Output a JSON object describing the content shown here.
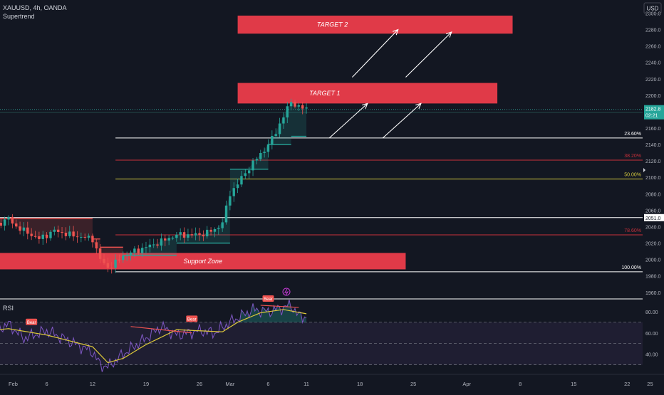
{
  "header": {
    "symbol_line": "XAUUSD, 4h, OANDA",
    "indicator": "Supertrend",
    "currency_button": "USD",
    "price_label": "2182.8",
    "countdown_label": "02:21",
    "rsi_label": "RSI"
  },
  "colors": {
    "background": "#131722",
    "up_candle": "#26a69a",
    "down_candle": "#ef5350",
    "supertrend_red": "#ef5350",
    "supertrend_green": "#26a69a",
    "zone_red": "#e03a48",
    "fib_white": "#ffffff",
    "fib_red": "#c8303a",
    "fib_yellow": "#d9cf40",
    "rsi_line": "#7e57c2",
    "rsi_ma": "#ddc93a",
    "rsi_fill": "#2a2540"
  },
  "chart_data": [
    {
      "type": "candlestick",
      "x_unit": "date",
      "y_unit": "USD",
      "ylim": [
        1952,
        2316
      ],
      "y_ticks": [
        1960,
        1980,
        2000,
        2020,
        2040,
        2060,
        2080,
        2100,
        2120,
        2140,
        2160,
        2180,
        2200,
        2220,
        2240,
        2260,
        2280,
        2300
      ],
      "y_tick_labels": [
        "1960.0",
        "1980.0",
        "2000.0",
        "2020.0",
        "2040.0",
        "2060.0",
        "2080.0",
        "2100.0",
        "2120.0",
        "2140.0",
        "2160.0",
        "2180.0",
        "2200.0",
        "2220.0",
        "2240.0",
        "2260.0",
        "2280.0",
        "2300.0"
      ],
      "x_ticks": [
        {
          "date": "2024-02-01",
          "label": "Feb"
        },
        {
          "date": "2024-02-06",
          "label": "6"
        },
        {
          "date": "2024-02-12",
          "label": "12"
        },
        {
          "date": "2024-02-19",
          "label": "19"
        },
        {
          "date": "2024-02-26",
          "label": "26"
        },
        {
          "date": "2024-03-01",
          "label": "Mar"
        },
        {
          "date": "2024-03-06",
          "label": "6"
        },
        {
          "date": "2024-03-11",
          "label": "11"
        },
        {
          "date": "2024-03-18",
          "label": "18"
        },
        {
          "date": "2024-03-25",
          "label": "25"
        },
        {
          "date": "2024-04-01",
          "label": "Apr"
        },
        {
          "date": "2024-04-08",
          "label": "8"
        },
        {
          "date": "2024-04-15",
          "label": "15"
        },
        {
          "date": "2024-04-22",
          "label": "22"
        },
        {
          "date": "2024-04-25",
          "label": "25"
        }
      ],
      "price_path": [
        {
          "date": "2024-01-29",
          "price": 2035
        },
        {
          "date": "2024-02-01",
          "price": 2050
        },
        {
          "date": "2024-02-02",
          "price": 2040
        },
        {
          "date": "2024-02-05",
          "price": 2025
        },
        {
          "date": "2024-02-07",
          "price": 2035
        },
        {
          "date": "2024-02-09",
          "price": 2030
        },
        {
          "date": "2024-02-12",
          "price": 2025
        },
        {
          "date": "2024-02-13",
          "price": 2000
        },
        {
          "date": "2024-02-14",
          "price": 1990
        },
        {
          "date": "2024-02-15",
          "price": 1996
        },
        {
          "date": "2024-02-16",
          "price": 2005
        },
        {
          "date": "2024-02-19",
          "price": 2015
        },
        {
          "date": "2024-02-21",
          "price": 2022
        },
        {
          "date": "2024-02-23",
          "price": 2030
        },
        {
          "date": "2024-02-26",
          "price": 2030
        },
        {
          "date": "2024-02-28",
          "price": 2036
        },
        {
          "date": "2024-02-29",
          "price": 2045
        },
        {
          "date": "2024-03-01",
          "price": 2080
        },
        {
          "date": "2024-03-04",
          "price": 2118
        },
        {
          "date": "2024-03-05",
          "price": 2128
        },
        {
          "date": "2024-03-06",
          "price": 2140
        },
        {
          "date": "2024-03-07",
          "price": 2155
        },
        {
          "date": "2024-03-08",
          "price": 2175
        },
        {
          "date": "2024-03-09",
          "price": 2192
        },
        {
          "date": "2024-03-10",
          "price": 2186
        },
        {
          "date": "2024-03-11",
          "price": 2182.8
        }
      ],
      "supertrend": [
        {
          "from": "2024-01-29",
          "to": "2024-02-12",
          "level": 2050,
          "trend": "down"
        },
        {
          "from": "2024-02-12",
          "to": "2024-02-13",
          "level": 2025,
          "trend": "down"
        },
        {
          "from": "2024-02-13",
          "to": "2024-02-16",
          "level": 2015,
          "trend": "down"
        },
        {
          "from": "2024-02-16",
          "to": "2024-02-23",
          "level": 2005,
          "trend": "up"
        },
        {
          "from": "2024-02-23",
          "to": "2024-03-01",
          "level": 2020,
          "trend": "up"
        },
        {
          "from": "2024-03-01",
          "to": "2024-03-06",
          "level": 2110,
          "trend": "up"
        },
        {
          "from": "2024-03-06",
          "to": "2024-03-09",
          "level": 2140,
          "trend": "up"
        },
        {
          "from": "2024-03-09",
          "to": "2024-03-11",
          "level": 2150,
          "trend": "up"
        }
      ],
      "zones": [
        {
          "label": "TARGET 2",
          "from": "2024-03-02",
          "to": "2024-04-07",
          "top": 2297,
          "bottom": 2275
        },
        {
          "label": "TARGET 1",
          "from": "2024-03-02",
          "to": "2024-04-05",
          "top": 2215,
          "bottom": 2190
        },
        {
          "label": "Support Zone",
          "from": "2024-01-29",
          "to": "2024-03-24",
          "top": 2008,
          "bottom": 1988
        }
      ],
      "fib_levels": [
        {
          "label": "23.60%",
          "price": 2148,
          "color": "#ffffff"
        },
        {
          "label": "38.20%",
          "price": 2121,
          "color": "#c8303a"
        },
        {
          "label": "50.00%",
          "price": 2098,
          "color": "#d9cf40"
        },
        {
          "label": "78.60%",
          "price": 2030,
          "color": "#c8303a"
        },
        {
          "label": "100.00%",
          "price": 1985,
          "color": "#ffffff"
        }
      ],
      "horizontal_lines": [
        {
          "price": 2051,
          "label": "2051.0"
        },
        {
          "price": 2182.8
        }
      ],
      "projection_arrows": [
        {
          "from": [
            "2024-03-14",
            2148
          ],
          "to": [
            "2024-03-19",
            2190
          ]
        },
        {
          "from": [
            "2024-03-21",
            2148
          ],
          "to": [
            "2024-03-26",
            2190
          ]
        },
        {
          "from": [
            "2024-03-17",
            2222
          ],
          "to": [
            "2024-03-23",
            2280
          ]
        },
        {
          "from": [
            "2024-03-24",
            2222
          ],
          "to": [
            "2024-03-30",
            2277
          ]
        }
      ]
    },
    {
      "type": "line",
      "name": "RSI",
      "ylim": [
        25,
        92
      ],
      "y_ticks": [
        40,
        60,
        80
      ],
      "y_tick_labels": [
        "40.00",
        "60.00",
        "80.00"
      ],
      "bands": {
        "upper": 70,
        "middle": 50,
        "lower": 30
      },
      "series": [
        {
          "values": [
            {
              "date": "2024-01-29",
              "v": 60
            },
            {
              "date": "2024-02-01",
              "v": 68
            },
            {
              "date": "2024-02-03",
              "v": 55
            },
            {
              "date": "2024-02-06",
              "v": 62
            },
            {
              "date": "2024-02-09",
              "v": 52
            },
            {
              "date": "2024-02-12",
              "v": 42
            },
            {
              "date": "2024-02-13",
              "v": 30
            },
            {
              "date": "2024-02-14",
              "v": 28
            },
            {
              "date": "2024-02-16",
              "v": 40
            },
            {
              "date": "2024-02-19",
              "v": 55
            },
            {
              "date": "2024-02-21",
              "v": 66
            },
            {
              "date": "2024-02-23",
              "v": 58
            },
            {
              "date": "2024-02-26",
              "v": 62
            },
            {
              "date": "2024-02-28",
              "v": 60
            },
            {
              "date": "2024-03-01",
              "v": 70
            },
            {
              "date": "2024-03-04",
              "v": 82
            },
            {
              "date": "2024-03-06",
              "v": 80
            },
            {
              "date": "2024-03-08",
              "v": 84
            },
            {
              "date": "2024-03-09",
              "v": 86
            },
            {
              "date": "2024-03-10",
              "v": 76
            },
            {
              "date": "2024-03-11",
              "v": 75
            }
          ]
        },
        {
          "values": [
            {
              "date": "2024-01-29",
              "v": 62
            },
            {
              "date": "2024-02-01",
              "v": 64
            },
            {
              "date": "2024-02-06",
              "v": 58
            },
            {
              "date": "2024-02-12",
              "v": 47
            },
            {
              "date": "2024-02-14",
              "v": 32
            },
            {
              "date": "2024-02-16",
              "v": 36
            },
            {
              "date": "2024-02-19",
              "v": 49
            },
            {
              "date": "2024-02-23",
              "v": 63
            },
            {
              "date": "2024-02-26",
              "v": 62
            },
            {
              "date": "2024-02-29",
              "v": 61
            },
            {
              "date": "2024-03-02",
              "v": 70
            },
            {
              "date": "2024-03-05",
              "v": 79
            },
            {
              "date": "2024-03-08",
              "v": 82
            },
            {
              "date": "2024-03-11",
              "v": 78
            }
          ]
        }
      ],
      "annotations": [
        {
          "label": "Bear",
          "date": "2024-01-30",
          "v": 70
        },
        {
          "label": "Bear",
          "date": "2024-02-04",
          "v": 66
        },
        {
          "label": "Bear",
          "date": "2024-02-25",
          "v": 69
        },
        {
          "label": "Bear",
          "date": "2024-03-06",
          "v": 88
        }
      ]
    }
  ]
}
